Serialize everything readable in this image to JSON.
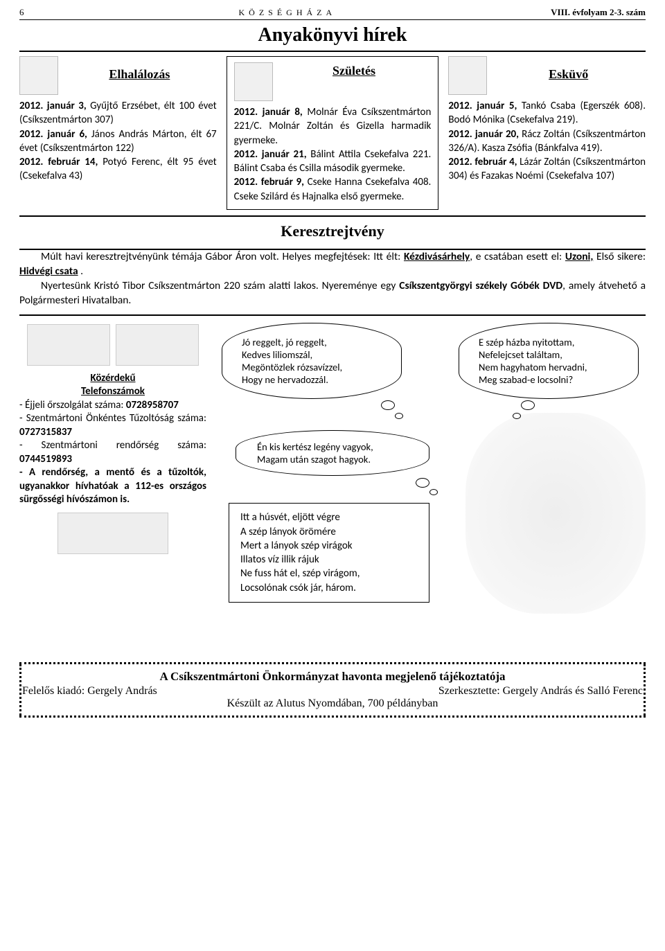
{
  "header": {
    "page_num": "6",
    "center": "KÖZSÉGHÁZA",
    "right": "VIII. évfolyam 2-3. szám"
  },
  "main_title": "Anyakönyvi hírek",
  "deaths": {
    "title": "Elhalálozás",
    "html": "<b>2012. január 3,</b> Gyűjtő Erzsébet, élt 100 évet (Csíkszentmárton 307)<br><b>2012. január 6,</b> János András Márton, élt 67 évet (Csíkszentmárton 122)<br><b>2012. február 14,</b> Potyó Ferenc, élt 95 évet (Csekefalva 43)"
  },
  "births": {
    "title": "Születés",
    "html": "<b>2012. január 8,</b> Molnár Éva Csíkszentmárton 221/C. Molnár Zoltán és Gizella harmadik gyermeke.<br><b>2012. január 21,</b> Bálint Attila Csekefalva 221. Bálint Csaba és Csilla második gyermeke.<br><b>2012. február 9,</b> Cseke Hanna Csekefalva 408. Cseke Szilárd és Hajnalka első gyermeke."
  },
  "weddings": {
    "title": "Esküvő",
    "html": "<b>2012. január 5,</b> Tankó Csaba (Egerszék 608). Bodó Mónika (Csekefalva 219).<br><b>2012. január 20,</b> Rácz Zoltán (Csíkszentmárton 326/A). Kasza Zsófia (Bánkfalva 419).<br><b>2012. február 4,</b> Lázár Zoltán (Csíkszentmárton 304) és Fazakas Noémi (Csekefalva 107)"
  },
  "crossword": {
    "title": "Keresztrejtvény",
    "html": "<span class=\"indent\">Múlt havi keresztrejtvényünk témája Gábor Áron volt. Helyes megfejtések: Itt élt: <b><u>Kézdivásárhely</u></b>, e csatában esett el: <b><u>Uzoni,</u></b> Első sikere: <b><u>Hidvégi csata</u></b> .</span><span class=\"indent\">Nyertesünk Kristó Tibor Csíkszentmárton 220 szám alatti lakos. Nyereménye egy <b>Csíkszentgyörgyi székely Góbék DVD</b>, amely átvehető a Polgármesteri Hivatalban.</span>"
  },
  "phones": {
    "heading1": "Közérdekű",
    "heading2": "Telefonszámok",
    "html": "- Éjjeli őrszolgálat száma: <b>0728958707</b><br>- Szentmártoni Önkéntes Tűzoltóság száma: <b>0727315837</b><br>- Szentmártoni rendőrség száma: <b>0744519893</b><br><b>- A rendőrség, a mentő és a tűzoltók, ugyanakkor hívhatóak a 112-es országos sürgősségi hívószámon is.</b>"
  },
  "bubble1": "Jó reggelt, jó reggelt,<br>Kedves liliomszál,<br>Megöntözlek rózsavízzel,<br>Hogy ne hervadozzál.",
  "bubble2": "E szép házba nyitottam,<br>Nefelejcset találtam,<br>Nem hagyhatom hervadni,<br>Meg szabad-e locsolni?",
  "bubble3": "Én kis kertész legény vagyok,<br>Magam után szagot hagyok.",
  "poem": "Itt a húsvét, eljött végre<br>A szép lányok örömére<br>Mert a lányok szép virágok<br>Illatos víz illik rájuk<br>Ne fuss hát el, szép virágom,<br>Locsolónak csók jár, három.",
  "footer": {
    "line1": "A Csíkszentmártoni Önkormányzat havonta megjelenő tájékoztatója",
    "leftlabel": "Felelős kiadó: Gergely András",
    "rightlabel": "Szerkesztette: Gergely András és Salló Ferenc",
    "line3": "Készült az  Alutus Nyomdában, 700 példányban"
  }
}
